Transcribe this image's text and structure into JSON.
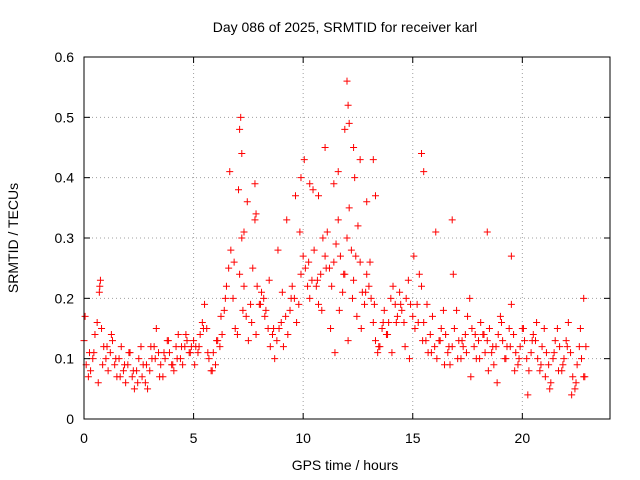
{
  "chart_data": {
    "type": "scatter",
    "title": "Day 086 of 2025, SRMTID for receiver karl",
    "xlabel": "GPS time / hours",
    "ylabel": "SRMTID / TECUs",
    "xlim": [
      0,
      24
    ],
    "ylim": [
      0,
      0.6
    ],
    "xticks": [
      0,
      5,
      10,
      15,
      20
    ],
    "xtick_labels": [
      "0",
      "5",
      "10",
      "15",
      "20"
    ],
    "yticks": [
      0,
      0.1,
      0.2,
      0.3,
      0.4,
      0.5,
      0.6
    ],
    "ytick_labels": [
      "0",
      "0.1",
      "0.2",
      "0.3",
      "0.4",
      "0.5",
      "0.6"
    ],
    "grid": true,
    "marker": "+",
    "series": [
      {
        "name": "SRMTID",
        "color": "#ff0000",
        "x": [
          0.0,
          0.1,
          0.2,
          0.3,
          0.4,
          0.5,
          0.6,
          0.7,
          0.8,
          0.9,
          1.0,
          1.1,
          1.2,
          1.3,
          1.4,
          1.5,
          1.6,
          1.7,
          1.8,
          1.9,
          2.0,
          2.1,
          2.2,
          2.3,
          2.4,
          2.5,
          2.6,
          2.7,
          2.8,
          2.9,
          3.0,
          3.1,
          3.2,
          3.3,
          3.4,
          3.5,
          3.6,
          3.7,
          3.8,
          3.9,
          4.0,
          4.1,
          4.2,
          4.3,
          4.4,
          4.5,
          4.6,
          4.7,
          4.8,
          4.9,
          5.0,
          5.1,
          5.2,
          5.3,
          5.4,
          5.5,
          5.6,
          5.7,
          5.8,
          5.9,
          6.0,
          6.1,
          6.2,
          6.3,
          6.4,
          6.5,
          6.6,
          6.7,
          6.8,
          6.9,
          7.0,
          7.1,
          7.2,
          7.3,
          7.4,
          7.5,
          7.6,
          7.7,
          7.8,
          7.9,
          8.0,
          8.1,
          8.2,
          8.3,
          8.4,
          8.5,
          8.6,
          8.7,
          8.8,
          8.9,
          9.0,
          9.1,
          9.2,
          9.3,
          9.4,
          9.5,
          9.6,
          9.7,
          9.8,
          9.9,
          10.0,
          10.1,
          10.2,
          10.3,
          10.4,
          10.5,
          10.6,
          10.7,
          10.8,
          10.9,
          11.0,
          11.1,
          11.2,
          11.3,
          11.4,
          11.5,
          11.6,
          11.7,
          11.8,
          11.9,
          12.0,
          12.1,
          12.2,
          12.3,
          12.4,
          12.5,
          12.6,
          12.7,
          12.8,
          12.9,
          13.0,
          13.1,
          13.2,
          13.3,
          13.4,
          13.5,
          13.6,
          13.7,
          13.8,
          13.9,
          14.0,
          14.1,
          14.2,
          14.3,
          14.4,
          14.5,
          14.6,
          14.7,
          14.8,
          14.9,
          15.0,
          15.1,
          15.2,
          15.3,
          15.4,
          15.5,
          15.6,
          15.7,
          15.8,
          15.9,
          16.0,
          16.1,
          16.2,
          16.3,
          16.4,
          16.5,
          16.6,
          16.7,
          16.8,
          16.9,
          17.0,
          17.1,
          17.2,
          17.3,
          17.4,
          17.5,
          17.6,
          17.7,
          17.8,
          17.9,
          18.0,
          18.1,
          18.2,
          18.3,
          18.4,
          18.5,
          18.6,
          18.7,
          18.8,
          18.9,
          19.0,
          19.1,
          19.2,
          19.3,
          19.4,
          19.5,
          19.6,
          19.7,
          19.8,
          19.9,
          20.0,
          20.1,
          20.2,
          20.3,
          20.4,
          20.5,
          20.6,
          20.7,
          20.8,
          20.9,
          21.0,
          21.1,
          21.2,
          21.3,
          21.4,
          21.5,
          21.6,
          21.7,
          21.8,
          21.9,
          22.0,
          22.1,
          22.2,
          22.3,
          22.4,
          22.5,
          22.6,
          22.7,
          22.8,
          22.9,
          0.05,
          0.25,
          0.45,
          0.65,
          0.85,
          1.05,
          1.25,
          1.45,
          1.65,
          1.85,
          2.05,
          2.25,
          2.45,
          2.65,
          2.85,
          3.05,
          3.25,
          3.45,
          3.65,
          3.85,
          4.05,
          4.25,
          4.45,
          4.65,
          4.85,
          5.05,
          5.25,
          5.45,
          5.65,
          5.85,
          6.05,
          6.25,
          6.45,
          6.65,
          6.85,
          7.05,
          7.25,
          7.45,
          7.65,
          7.85,
          8.05,
          8.25,
          8.45,
          8.65,
          8.85,
          9.05,
          9.25,
          9.45,
          9.65,
          9.85,
          10.05,
          10.25,
          10.45,
          10.65,
          10.85,
          11.05,
          11.25,
          11.45,
          11.65,
          11.85,
          12.05,
          12.25,
          12.45,
          12.65,
          12.85,
          13.05,
          13.25,
          13.45,
          13.65,
          13.85,
          14.05,
          14.25,
          14.45,
          14.65,
          14.85,
          15.05,
          15.25,
          15.45,
          15.65,
          15.85,
          16.05,
          16.25,
          16.45,
          16.65,
          16.85,
          17.05,
          17.25,
          17.45,
          17.65,
          17.85,
          18.05,
          18.25,
          18.45,
          18.65,
          18.85,
          19.05,
          19.25,
          19.45,
          19.65,
          19.85,
          20.05,
          20.25,
          20.45,
          20.65,
          20.85,
          21.05,
          21.25,
          21.45,
          21.65,
          21.85,
          22.05,
          22.25,
          22.45,
          22.65,
          22.85,
          0.75,
          0.72,
          7.1,
          7.15,
          7.2,
          7.3,
          7.8,
          7.85,
          9.9,
          10.3,
          10.7,
          11.0,
          11.4,
          11.6,
          11.9,
          12.0,
          12.05,
          12.1,
          12.3,
          12.35,
          12.6,
          12.9,
          13.2,
          13.3,
          15.4,
          15.5,
          16.8,
          18.4,
          19.5,
          22.8
        ],
        "y": [
          0.13,
          0.09,
          0.07,
          0.08,
          0.1,
          0.14,
          0.16,
          0.21,
          0.15,
          0.12,
          0.1,
          0.08,
          0.11,
          0.13,
          0.09,
          0.07,
          0.1,
          0.12,
          0.08,
          0.06,
          0.09,
          0.11,
          0.07,
          0.05,
          0.08,
          0.1,
          0.12,
          0.09,
          0.06,
          0.05,
          0.08,
          0.1,
          0.12,
          0.15,
          0.11,
          0.09,
          0.07,
          0.1,
          0.13,
          0.11,
          0.09,
          0.08,
          0.12,
          0.14,
          0.1,
          0.09,
          0.12,
          0.13,
          0.11,
          0.12,
          0.13,
          0.12,
          0.11,
          0.14,
          0.16,
          0.19,
          0.15,
          0.1,
          0.08,
          0.11,
          0.09,
          0.13,
          0.12,
          0.14,
          0.18,
          0.22,
          0.25,
          0.28,
          0.2,
          0.15,
          0.14,
          0.24,
          0.3,
          0.22,
          0.17,
          0.13,
          0.19,
          0.25,
          0.33,
          0.22,
          0.19,
          0.21,
          0.2,
          0.18,
          0.15,
          0.12,
          0.14,
          0.1,
          0.13,
          0.15,
          0.16,
          0.12,
          0.17,
          0.14,
          0.18,
          0.22,
          0.2,
          0.16,
          0.19,
          0.24,
          0.27,
          0.25,
          0.22,
          0.2,
          0.23,
          0.28,
          0.22,
          0.19,
          0.24,
          0.3,
          0.27,
          0.31,
          0.25,
          0.22,
          0.26,
          0.29,
          0.33,
          0.27,
          0.21,
          0.24,
          0.3,
          0.35,
          0.28,
          0.23,
          0.27,
          0.32,
          0.26,
          0.21,
          0.19,
          0.24,
          0.22,
          0.2,
          0.16,
          0.13,
          0.11,
          0.12,
          0.15,
          0.18,
          0.14,
          0.16,
          0.2,
          0.22,
          0.19,
          0.17,
          0.21,
          0.18,
          0.16,
          0.2,
          0.23,
          0.19,
          0.17,
          0.15,
          0.19,
          0.24,
          0.22,
          0.16,
          0.13,
          0.11,
          0.14,
          0.17,
          0.12,
          0.1,
          0.13,
          0.15,
          0.18,
          0.14,
          0.11,
          0.09,
          0.12,
          0.15,
          0.18,
          0.13,
          0.1,
          0.12,
          0.14,
          0.17,
          0.2,
          0.15,
          0.12,
          0.1,
          0.13,
          0.16,
          0.14,
          0.11,
          0.13,
          0.15,
          0.11,
          0.09,
          0.12,
          0.14,
          0.17,
          0.13,
          0.1,
          0.12,
          0.15,
          0.19,
          0.14,
          0.11,
          0.09,
          0.12,
          0.15,
          0.13,
          0.1,
          0.08,
          0.11,
          0.14,
          0.13,
          0.1,
          0.08,
          0.12,
          0.15,
          0.11,
          0.09,
          0.06,
          0.1,
          0.13,
          0.15,
          0.12,
          0.08,
          0.1,
          0.13,
          0.16,
          0.11,
          0.07,
          0.05,
          0.09,
          0.12,
          0.1,
          0.07,
          0.12,
          0.17,
          0.11,
          0.11,
          0.06,
          0.09,
          0.12,
          0.14,
          0.1,
          0.07,
          0.09,
          0.11,
          0.08,
          0.06,
          0.07,
          0.09,
          0.12,
          0.1,
          0.07,
          0.11,
          0.13,
          0.09,
          0.1,
          0.12,
          0.14,
          0.11,
          0.09,
          0.12,
          0.15,
          0.11,
          0.08,
          0.13,
          0.17,
          0.2,
          0.41,
          0.26,
          0.38,
          0.18,
          0.36,
          0.16,
          0.14,
          0.19,
          0.17,
          0.23,
          0.15,
          0.28,
          0.21,
          0.33,
          0.2,
          0.37,
          0.31,
          0.43,
          0.26,
          0.38,
          0.23,
          0.18,
          0.25,
          0.15,
          0.11,
          0.18,
          0.24,
          0.13,
          0.2,
          0.17,
          0.15,
          0.21,
          0.26,
          0.19,
          0.12,
          0.16,
          0.14,
          0.11,
          0.16,
          0.19,
          0.12,
          0.1,
          0.27,
          0.16,
          0.13,
          0.19,
          0.11,
          0.31,
          0.13,
          0.09,
          0.12,
          0.24,
          0.1,
          0.13,
          0.11,
          0.07,
          0.14,
          0.1,
          0.14,
          0.08,
          0.12,
          0.06,
          0.16,
          0.1,
          0.12,
          0.08,
          0.1,
          0.15,
          0.04,
          0.13,
          0.16,
          0.09,
          0.07,
          0.05,
          0.11,
          0.08,
          0.09,
          0.12,
          0.04,
          0.06,
          0.15,
          0.07,
          0.23,
          0.22,
          0.48,
          0.5,
          0.44,
          0.31,
          0.39,
          0.34,
          0.4,
          0.39,
          0.37,
          0.45,
          0.39,
          0.41,
          0.48,
          0.56,
          0.52,
          0.49,
          0.45,
          0.4,
          0.43,
          0.36,
          0.43,
          0.37,
          0.44,
          0.41,
          0.33,
          0.31,
          0.27,
          0.2
        ]
      }
    ]
  }
}
